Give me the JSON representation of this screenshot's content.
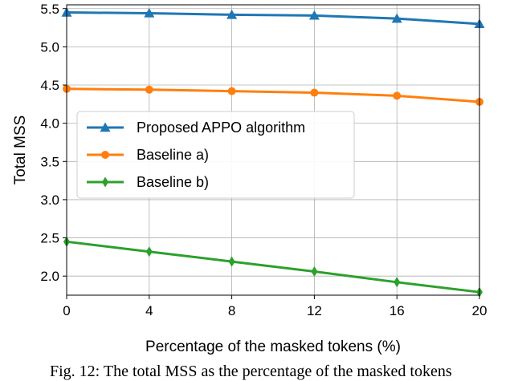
{
  "chart_data": {
    "type": "line",
    "xlabel": "Percentage of the masked tokens (%)",
    "ylabel": "Total MSS",
    "x": [
      0,
      4,
      8,
      12,
      16,
      20
    ],
    "xticks": [
      "0",
      "4",
      "8",
      "12",
      "16",
      "20"
    ],
    "xlim": [
      0,
      20
    ],
    "yticks": [
      "2.0",
      "2.5",
      "3.0",
      "3.5",
      "4.0",
      "4.5",
      "5.0",
      "5.5"
    ],
    "ylim": [
      1.75,
      5.55
    ],
    "grid": true,
    "legend_position": "center-left",
    "series": [
      {
        "name": "Proposed APPO algorithm",
        "color": "#1f77b4",
        "marker": "triangle",
        "values": [
          5.45,
          5.44,
          5.42,
          5.41,
          5.37,
          5.3
        ]
      },
      {
        "name": "Baseline a)",
        "color": "#ff7f0e",
        "marker": "circle",
        "values": [
          4.45,
          4.44,
          4.42,
          4.4,
          4.36,
          4.28
        ]
      },
      {
        "name": "Baseline b)",
        "color": "#2ca02c",
        "marker": "diamond",
        "values": [
          2.45,
          2.32,
          2.19,
          2.06,
          1.92,
          1.79
        ]
      }
    ]
  },
  "caption": "Fig. 12: The total MSS as the percentage of the masked tokens"
}
